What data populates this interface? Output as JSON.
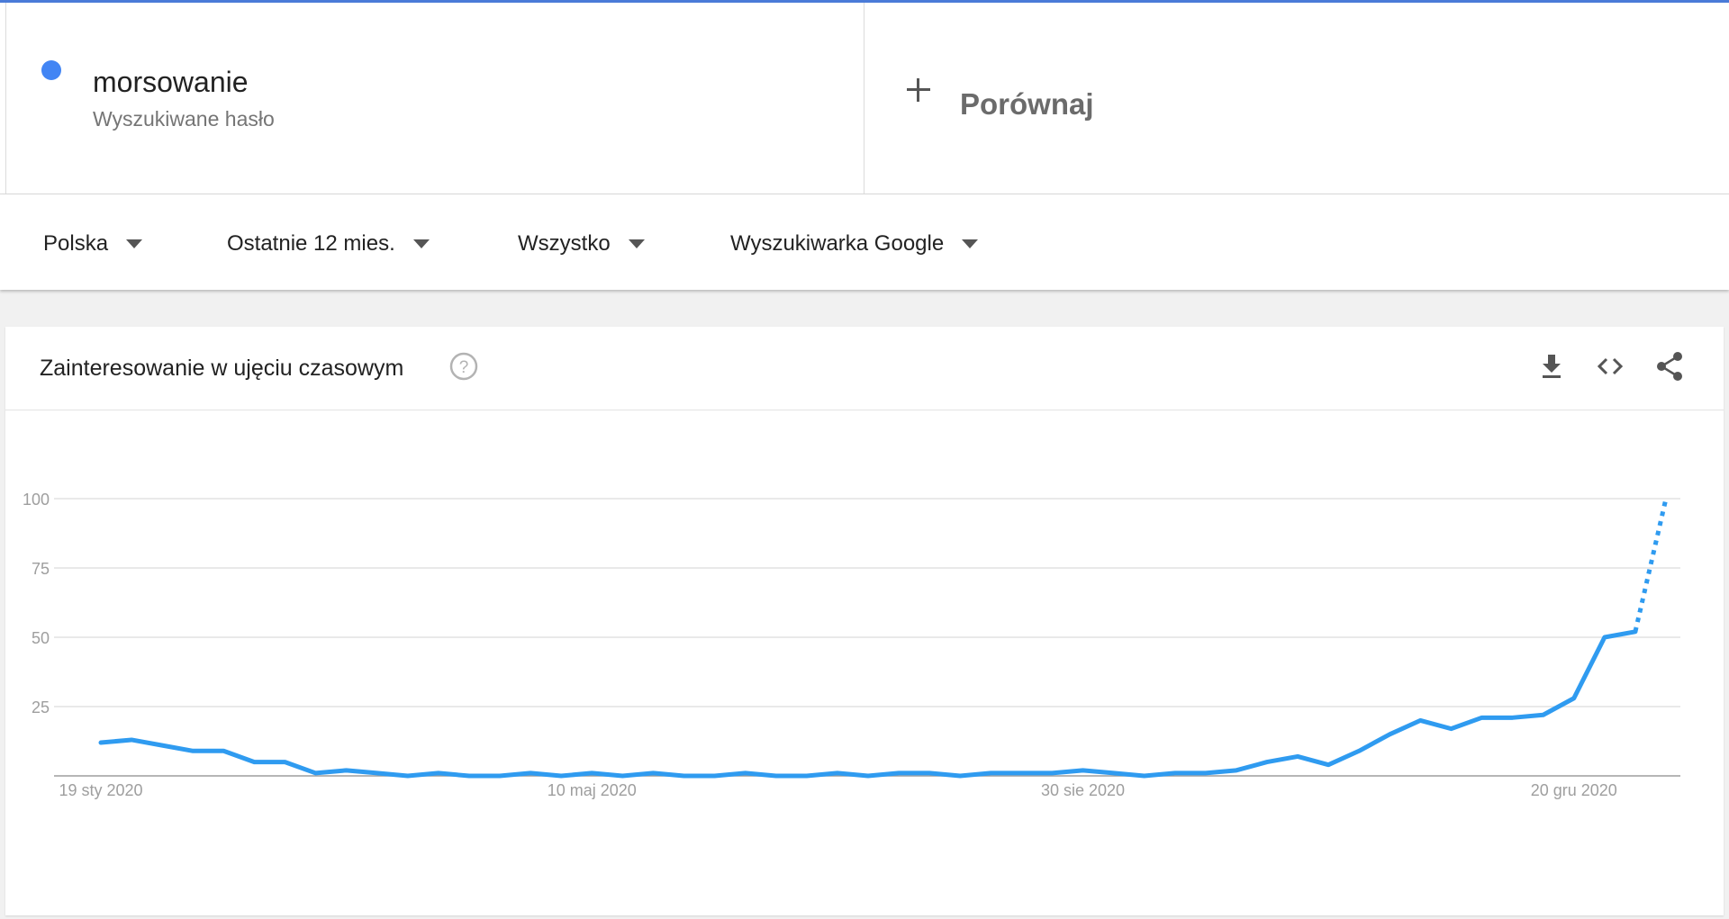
{
  "term": {
    "name": "morsowanie",
    "subtitle": "Wyszukiwane hasło",
    "color": "#4285f4"
  },
  "compare": {
    "label": "Porównaj",
    "icon": "plus-icon"
  },
  "filters": [
    {
      "label": "Polska"
    },
    {
      "label": "Ostatnie 12 mies."
    },
    {
      "label": "Wszystko"
    },
    {
      "label": "Wyszukiwarka Google"
    }
  ],
  "card": {
    "title": "Zainteresowanie w ujęciu czasowym",
    "icons": [
      "help-icon",
      "download-icon",
      "embed-code-icon",
      "share-icon"
    ]
  },
  "chart_data": {
    "type": "line",
    "title": "",
    "xlabel": "",
    "ylabel": "",
    "ylim": [
      0,
      100
    ],
    "yticks": [
      25,
      50,
      75,
      100
    ],
    "xtick_labels": [
      "19 sty 2020",
      "10 maj 2020",
      "30 sie 2020",
      "20 gru 2020"
    ],
    "grid": true,
    "color": "#2f9bf0",
    "series": [
      {
        "values": [
          12,
          13,
          11,
          9,
          9,
          5,
          5,
          1,
          2,
          1,
          0,
          1,
          0,
          0,
          1,
          0,
          1,
          0,
          1,
          0,
          0,
          1,
          0,
          0,
          1,
          0,
          1,
          1,
          0,
          1,
          1,
          1,
          2,
          1,
          0,
          1,
          1,
          2,
          5,
          7,
          4,
          9,
          15,
          20,
          17,
          21,
          21,
          22,
          28,
          50,
          52,
          100
        ],
        "partial_from_index": 50
      }
    ]
  }
}
